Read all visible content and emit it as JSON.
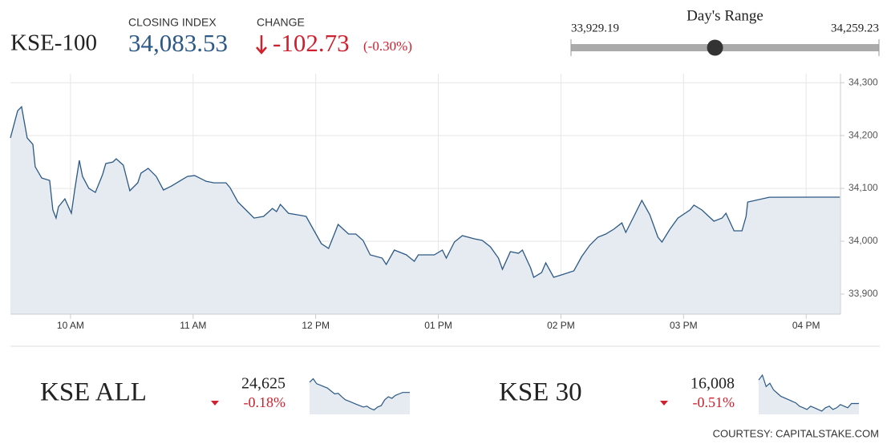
{
  "header": {
    "index_name": "KSE-100",
    "close_title": "CLOSING INDEX",
    "close": {
      "value": 34083.53,
      "label": "34,083.53"
    },
    "change_title": "CHANGE",
    "change": "-102.73",
    "change_pct": "(-0.30%)"
  },
  "day_range": {
    "title": "Day's Range",
    "low": {
      "value": 33929.19,
      "label": "33,929.19"
    },
    "high": {
      "value": 34259.23,
      "label": "34,259.23"
    }
  },
  "chart_data": [
    {
      "type": "area",
      "color": "#2c5985",
      "fill": "#e5ebf1",
      "grid": true,
      "x": [
        9.51,
        9.569,
        9.601,
        9.647,
        9.693,
        9.712,
        9.765,
        9.83,
        9.856,
        9.882,
        9.902,
        9.954,
        10.007,
        10.033,
        10.072,
        10.098,
        10.15,
        10.203,
        10.261,
        10.288,
        10.346,
        10.373,
        10.431,
        10.484,
        10.549,
        10.575,
        10.634,
        10.699,
        10.758,
        10.824,
        10.889,
        10.954,
        11.013,
        11.105,
        11.17,
        11.268,
        11.301,
        11.366,
        11.431,
        11.497,
        11.575,
        11.647,
        11.68,
        11.712,
        11.778,
        11.85,
        11.922,
        11.98,
        12.046,
        12.105,
        12.157,
        12.183,
        12.268,
        12.327,
        12.386,
        12.444,
        12.542,
        12.575,
        12.641,
        12.739,
        12.804,
        12.837,
        12.967,
        13.033,
        13.065,
        13.131,
        13.196,
        13.294,
        13.359,
        13.425,
        13.49,
        13.523,
        13.588,
        13.654,
        13.686,
        13.752,
        13.778,
        13.843,
        13.876,
        13.941,
        14.007,
        14.105,
        14.17,
        14.235,
        14.301,
        14.366,
        14.431,
        14.497,
        14.529,
        14.595,
        14.66,
        14.725,
        14.791,
        14.824,
        14.889,
        14.954,
        15.052,
        15.085,
        15.15,
        15.248,
        15.314,
        15.346,
        15.412,
        15.477,
        15.51,
        15.523,
        15.699,
        16.275
      ],
      "values": [
        34195.5,
        34247,
        34254.5,
        34195.5,
        34183.3,
        34140.9,
        34119.7,
        34115.2,
        34059.1,
        34043.9,
        34065.2,
        34080.3,
        34053,
        34095.5,
        34153,
        34122.7,
        34100,
        34092.4,
        34125.8,
        34147,
        34150,
        34156.1,
        34143.9,
        34095.5,
        34110.6,
        34128.8,
        34137.9,
        34122.7,
        34097,
        34104.5,
        34113.6,
        34122.7,
        34124.2,
        34113.6,
        34110.6,
        34110.6,
        34101.5,
        34074.2,
        34059.1,
        34043.9,
        34047,
        34062.1,
        34056.1,
        34069.7,
        34053,
        34050,
        34047,
        34022.7,
        33995.5,
        33986.4,
        34016.7,
        34031.8,
        34013.6,
        34013.6,
        34001.5,
        33974.2,
        33968.2,
        33956.1,
        33983.3,
        33974.2,
        33962.1,
        33974.2,
        33974.2,
        33983.3,
        33968.2,
        33998.5,
        34010.6,
        34004.5,
        34001.5,
        33989.4,
        33968.2,
        33947,
        33980.3,
        33977.3,
        33983.3,
        33950,
        33931.8,
        33940.9,
        33959.1,
        33931.8,
        33936.4,
        33943.9,
        33971.2,
        33992.4,
        34007.6,
        34013.6,
        34022.7,
        34034.8,
        34016.7,
        34047,
        34077.3,
        34050,
        34007.6,
        33998.5,
        34022.7,
        34043.9,
        34059.1,
        34068.2,
        34059.1,
        34037.9,
        34043.9,
        34053,
        34019.7,
        34019.7,
        34047,
        34074.2,
        34083.3,
        34083.5
      ],
      "xlim": [
        9.51,
        16.28
      ],
      "xticks": [
        {
          "value": 10,
          "label": "10 AM"
        },
        {
          "value": 11,
          "label": "11 AM"
        },
        {
          "value": 12,
          "label": "12 PM"
        },
        {
          "value": 13,
          "label": "01 PM"
        },
        {
          "value": 14,
          "label": "02 PM"
        },
        {
          "value": 15,
          "label": "03 PM"
        },
        {
          "value": 16,
          "label": "04 PM"
        }
      ],
      "ylim": [
        33862,
        34317
      ],
      "yticks": [
        {
          "value": 33900,
          "label": "33,900"
        },
        {
          "value": 34000,
          "label": "34,000"
        },
        {
          "value": 34100,
          "label": "34,100"
        },
        {
          "value": 34200,
          "label": "34,200"
        },
        {
          "value": 34300,
          "label": "34,300"
        }
      ]
    },
    {
      "type": "sparkline",
      "title": "KSE ALL",
      "value_label": "24,625",
      "change_label": "-0.18%",
      "color": "#2c5985",
      "fill": "#e5ebf1",
      "values": [
        24660,
        24672,
        24655,
        24650,
        24645,
        24640,
        24630,
        24620,
        24622,
        24610,
        24600,
        24595,
        24590,
        24585,
        24580,
        24575,
        24578,
        24570,
        24565,
        24575,
        24580,
        24600,
        24610,
        24605,
        24615,
        24620,
        24625,
        24625,
        24625
      ],
      "ylim": [
        24550,
        24690
      ]
    },
    {
      "type": "sparkline",
      "title": "KSE 30",
      "value_label": "16,008",
      "change_label": "-0.51%",
      "color": "#2c5985",
      "fill": "#e5ebf1",
      "values": [
        16080,
        16095,
        16060,
        16070,
        16050,
        16040,
        16030,
        16025,
        16020,
        16015,
        16010,
        16000,
        15995,
        15990,
        16000,
        15995,
        15990,
        15985,
        15995,
        16000,
        15990,
        15995,
        16005,
        16000,
        15995,
        16008,
        16008,
        16008
      ],
      "ylim": [
        15975,
        16100
      ]
    }
  ],
  "footer": "COURTESY: CAPITALSTAKE.COM"
}
